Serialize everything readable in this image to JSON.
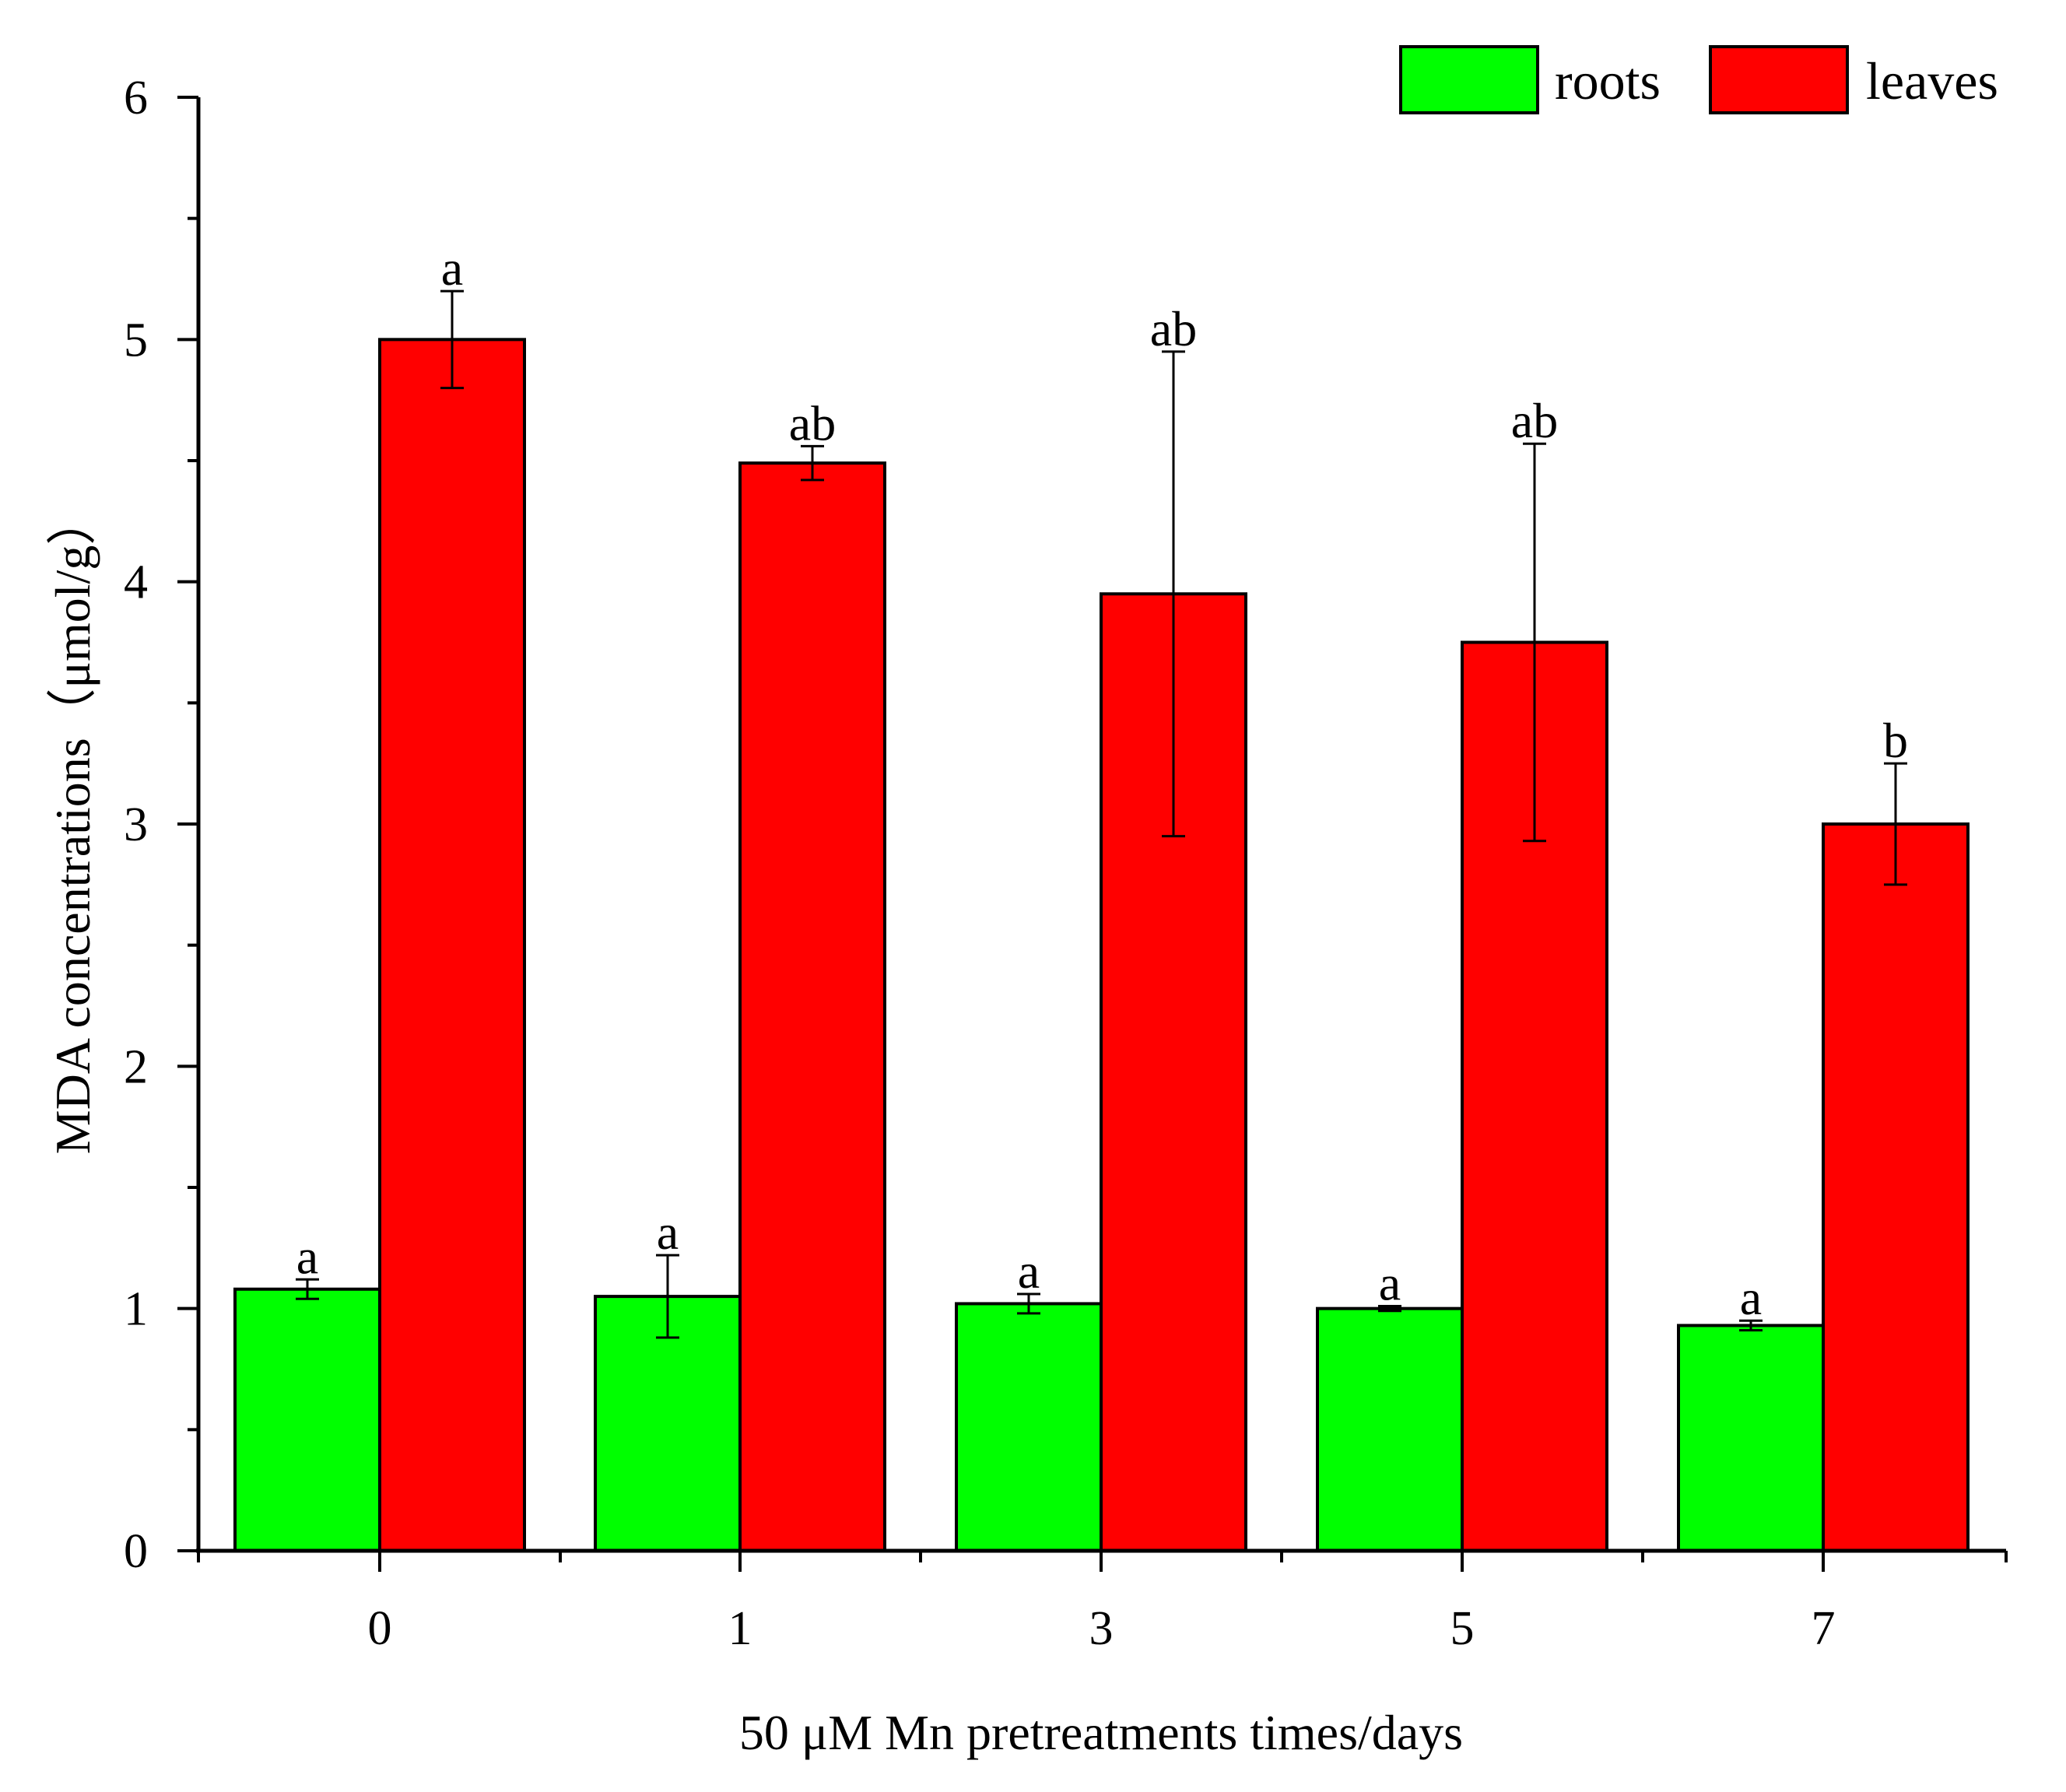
{
  "chart_data": {
    "type": "bar",
    "title": "",
    "xlabel": "50 μM Mn pretreatments times/days",
    "ylabel": "MDA concentrations（μmol/g）",
    "categories": [
      "0",
      "1",
      "3",
      "5",
      "7"
    ],
    "ylim": [
      0,
      6
    ],
    "yticks": [
      "0",
      "1",
      "2",
      "3",
      "4",
      "5",
      "6"
    ],
    "series": [
      {
        "name": "roots",
        "color": "#00ff00",
        "values": [
          1.08,
          1.05,
          1.02,
          1.0,
          0.93
        ],
        "errors": [
          0.04,
          0.17,
          0.04,
          0.01,
          0.02
        ],
        "labels": [
          "a",
          "a",
          "a",
          "a",
          "a"
        ]
      },
      {
        "name": "leaves",
        "color": "#ff0000",
        "values": [
          5.0,
          4.49,
          3.95,
          3.75,
          3.0
        ],
        "errors": [
          0.2,
          0.07,
          1.0,
          0.82,
          0.25
        ],
        "labels": [
          "a",
          "ab",
          "ab",
          "ab",
          "b"
        ]
      }
    ],
    "legend_position": "top-right",
    "grid": false
  }
}
